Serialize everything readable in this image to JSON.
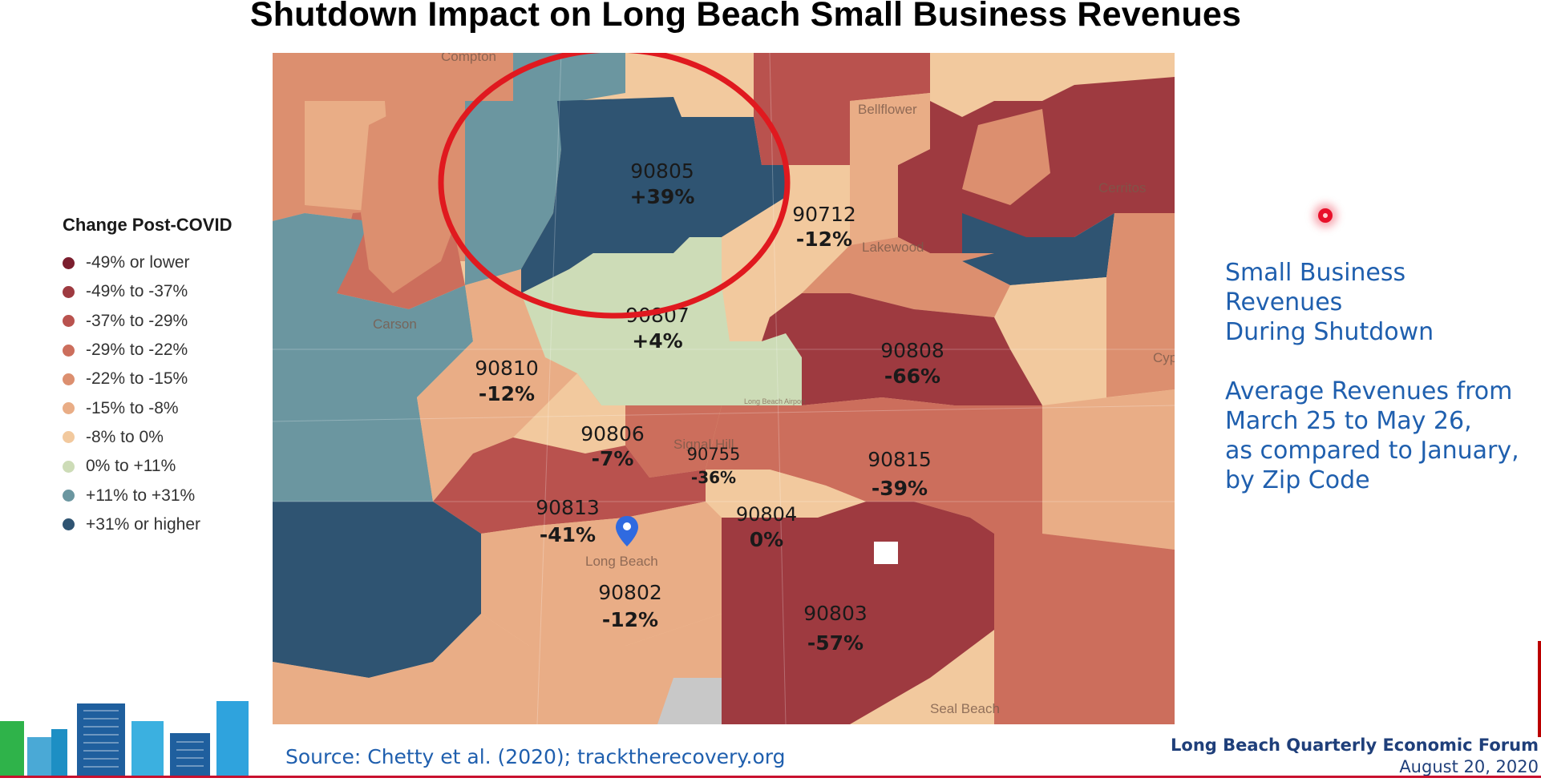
{
  "title": "Shutdown Impact on Long Beach Small Business Revenues",
  "legend": {
    "title": "Change Post-COVID",
    "items": [
      {
        "label": "-49% or lower",
        "color": "#7b1e2e"
      },
      {
        "label": "-49% to -37%",
        "color": "#9e3a40"
      },
      {
        "label": "-37% to -29%",
        "color": "#b9524e"
      },
      {
        "label": "-29% to -22%",
        "color": "#cc6e5c"
      },
      {
        "label": "-22% to -15%",
        "color": "#dc8f6f"
      },
      {
        "label": "-15% to -8%",
        "color": "#e9ad86"
      },
      {
        "label": "-8% to 0%",
        "color": "#f2c99e"
      },
      {
        "label": "0% to +11%",
        "color": "#cddcb7"
      },
      {
        "label": "+11% to +31%",
        "color": "#6b96a0"
      },
      {
        "label": "+31% or higher",
        "color": "#2f5472"
      }
    ]
  },
  "zips": [
    {
      "code": "90805",
      "change": "+39%"
    },
    {
      "code": "90712",
      "change": "-12%"
    },
    {
      "code": "90807",
      "change": "+4%"
    },
    {
      "code": "90808",
      "change": "-66%"
    },
    {
      "code": "90810",
      "change": "-12%"
    },
    {
      "code": "90806",
      "change": "-7%"
    },
    {
      "code": "90755",
      "change": "-36%"
    },
    {
      "code": "90815",
      "change": "-39%"
    },
    {
      "code": "90813",
      "change": "-41%"
    },
    {
      "code": "90804",
      "change": "0%"
    },
    {
      "code": "90802",
      "change": "-12%"
    },
    {
      "code": "90803",
      "change": "-57%"
    }
  ],
  "places": {
    "compton": "Compton",
    "bellflower": "Bellflower",
    "cerritos": "Cerritos",
    "lakewood": "Lakewood",
    "carson": "Carson",
    "signal_hill": "Signal Hill",
    "long_beach": "Long Beach",
    "cyp": "Cyp",
    "seal_beach": "Seal Beach",
    "airport": "Long Beach Airport"
  },
  "side": {
    "line1": "Small Business",
    "line2": "Revenues",
    "line3": "During Shutdown",
    "line4": "Average Revenues from",
    "line5": "March 25 to May 26,",
    "line6": "as compared to January,",
    "line7": "by Zip Code"
  },
  "source": "Source: Chetty et al. (2020); tracktherecovery.org",
  "forum": {
    "name": "Long Beach Quarterly Economic Forum",
    "date": "August 20, 2020"
  }
}
